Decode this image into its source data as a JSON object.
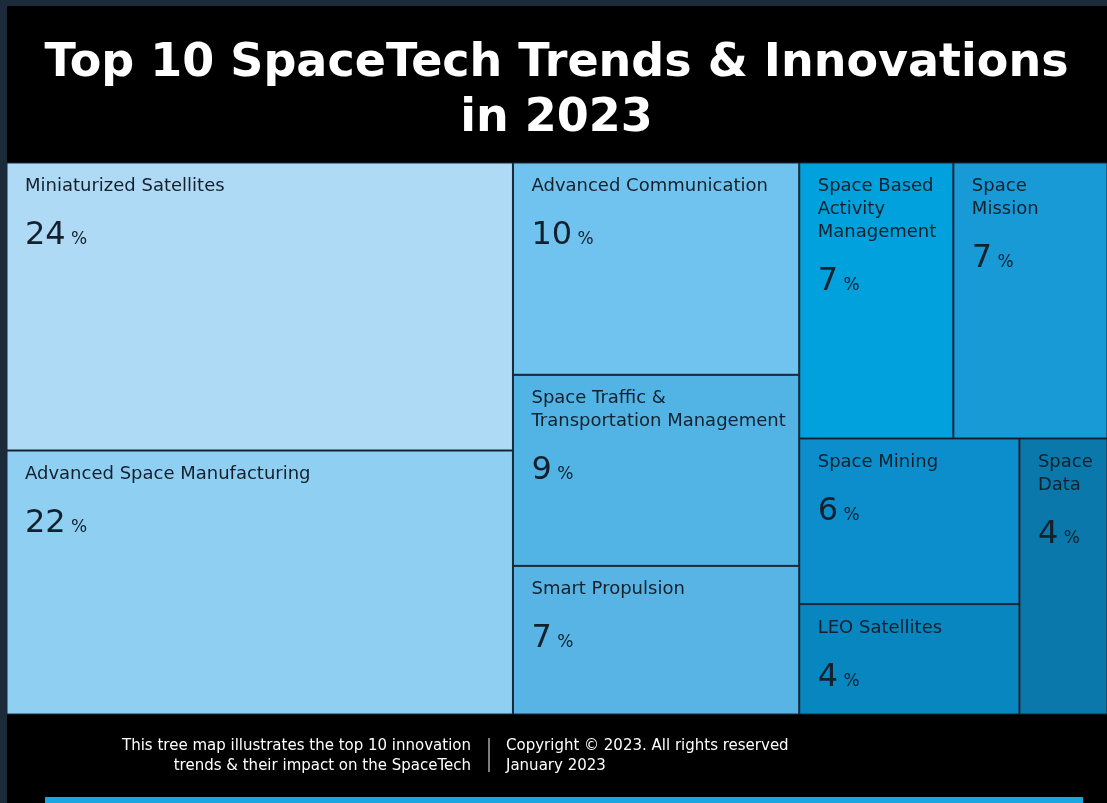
{
  "chart_data": {
    "type": "other",
    "title": "Top 10 SpaceTech Trends & Innovations in 2023",
    "categories": [
      "Miniaturized Satellites",
      "Advanced Space Manufacturing",
      "Advanced Communication",
      "Space Traffic & Transportation Management",
      "Smart Propulsion",
      "Space Based Activity Management",
      "Space Mission",
      "Space Mining",
      "LEO Satellites",
      "Space Data"
    ],
    "values": [
      24,
      22,
      10,
      9,
      7,
      7,
      7,
      6,
      4,
      4
    ],
    "value_labels": [
      "24 %",
      "22 %",
      "10 %",
      "9 %",
      "7 %",
      "7 %",
      "7 %",
      "6 %",
      "4 %",
      "4 %"
    ],
    "colors": [
      "#afdaf6",
      "#8ecff2",
      "#70c3ee",
      "#52b3e5",
      "#58b4e4",
      "#00a1dd",
      "#189ad6",
      "#0d8ecc",
      "#0886bf",
      "#0a78ab"
    ],
    "annotations": [
      "This tree map illustrates the top 10 innovation trends & their impact on the SpaceTech",
      "Copyright © 2023. All rights reserved",
      "January 2023"
    ]
  }
}
